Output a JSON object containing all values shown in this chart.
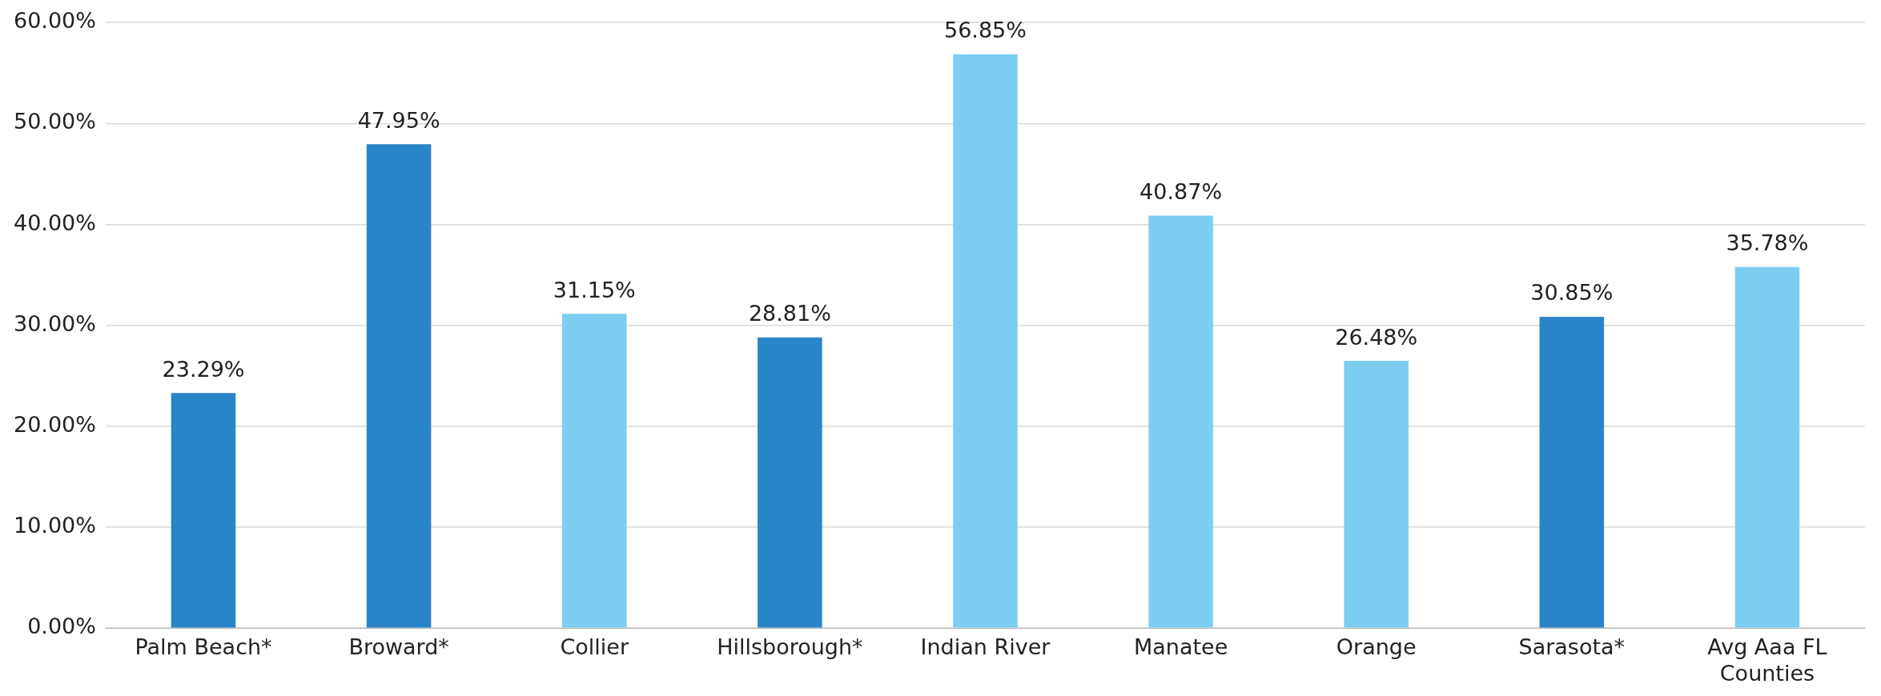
{
  "chart_data": {
    "type": "bar",
    "categories": [
      "Palm Beach*",
      "Broward*",
      "Collier",
      "Hillsborough*",
      "Indian River",
      "Manatee",
      "Orange",
      "Sarasota*",
      "Avg Aaa FL Counties"
    ],
    "values": [
      23.29,
      47.95,
      31.15,
      28.81,
      56.85,
      40.87,
      26.48,
      30.85,
      35.78
    ],
    "value_labels": [
      "23.29%",
      "47.95%",
      "31.15%",
      "28.81%",
      "56.85%",
      "40.87%",
      "26.48%",
      "30.85%",
      "35.78%"
    ],
    "colors": [
      "#2a84c8",
      "#2a84c8",
      "#7dcef0",
      "#2a84c8",
      "#7dcef0",
      "#7dcef0",
      "#7dcef0",
      "#2a84c8",
      "#7dcef0"
    ],
    "ylim": [
      0,
      60
    ],
    "yticks": [
      {
        "value": 0,
        "label": "0.00%"
      },
      {
        "value": 10,
        "label": "10.00%"
      },
      {
        "value": 20,
        "label": "20.00%"
      },
      {
        "value": 30,
        "label": "30.00%"
      },
      {
        "value": 40,
        "label": "40.00%"
      },
      {
        "value": 50,
        "label": "50.00%"
      },
      {
        "value": 60,
        "label": "60.00%"
      }
    ],
    "grid": "y",
    "legend": false
  }
}
